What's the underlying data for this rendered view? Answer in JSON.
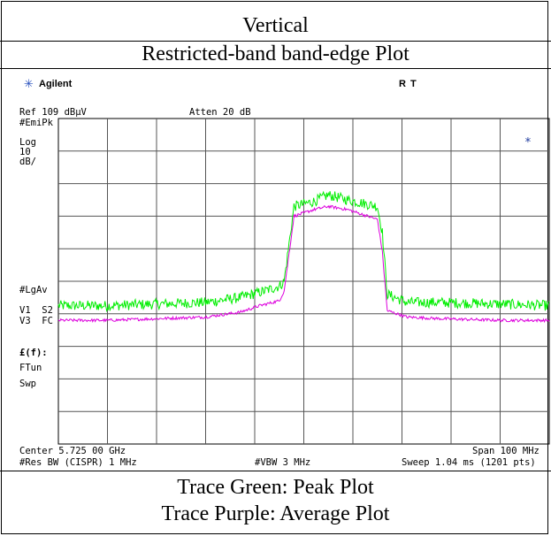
{
  "header": {
    "title": "Vertical",
    "subtitle": "Restricted-band band-edge Plot"
  },
  "instrument": {
    "brand": "Agilent",
    "rt_label": "R  T",
    "ref_level": "Ref 109 dBµV",
    "atten": "Atten 20 dB",
    "left_labels": [
      "#EmiPk",
      "Log",
      "10",
      "dB/",
      "#LgAv",
      "V1  S2",
      "V3  FC",
      "£(f):",
      "FTun",
      "Swp"
    ],
    "marker_star": "*",
    "center": "Center 5.725 00 GHz",
    "span": "Span 100 MHz",
    "res_bw": "#Res BW (CISPR) 1 MHz",
    "vbw": "#VBW 3 MHz",
    "sweep": "Sweep 1.04 ms (1201 pts)"
  },
  "colors": {
    "peak": "#00ee00",
    "average": "#dd00dd",
    "grid": "#555555",
    "star": "#1e3a9e"
  },
  "footer": {
    "line1": "Trace Green: Peak Plot",
    "line2": "Trace Purple: Average Plot"
  },
  "chart_data": {
    "type": "line",
    "title": "Restricted-band band-edge Plot",
    "x_unit": "MHz",
    "xlim": [
      5675,
      5775
    ],
    "ylim": [
      9,
      109
    ],
    "y_unit": "dBµV",
    "grid": true,
    "series": [
      {
        "name": "Peak",
        "color": "#00ee00",
        "x": [
          5675,
          5685,
          5695,
          5705,
          5712,
          5717,
          5720,
          5721,
          5723,
          5727,
          5730,
          5734,
          5737,
          5740,
          5741,
          5742,
          5746,
          5753,
          5765,
          5775
        ],
        "y": [
          51.5,
          51.5,
          52,
          52.5,
          54,
          56,
          57.5,
          59,
          82,
          83.5,
          85.5,
          84,
          83,
          82,
          74,
          55,
          52.5,
          52.5,
          52,
          51.5
        ]
      },
      {
        "name": "Average",
        "color": "#dd00dd",
        "x": [
          5675,
          5685,
          5695,
          5705,
          5712,
          5716,
          5720,
          5721,
          5723,
          5727,
          5730,
          5734,
          5737,
          5740,
          5741,
          5742,
          5746,
          5753,
          5765,
          5775
        ],
        "y": [
          47,
          47,
          47.5,
          48,
          49.5,
          51.5,
          53,
          56,
          79,
          81,
          82,
          81,
          79.5,
          78,
          68,
          50,
          48,
          47.5,
          47,
          47
        ]
      }
    ]
  }
}
